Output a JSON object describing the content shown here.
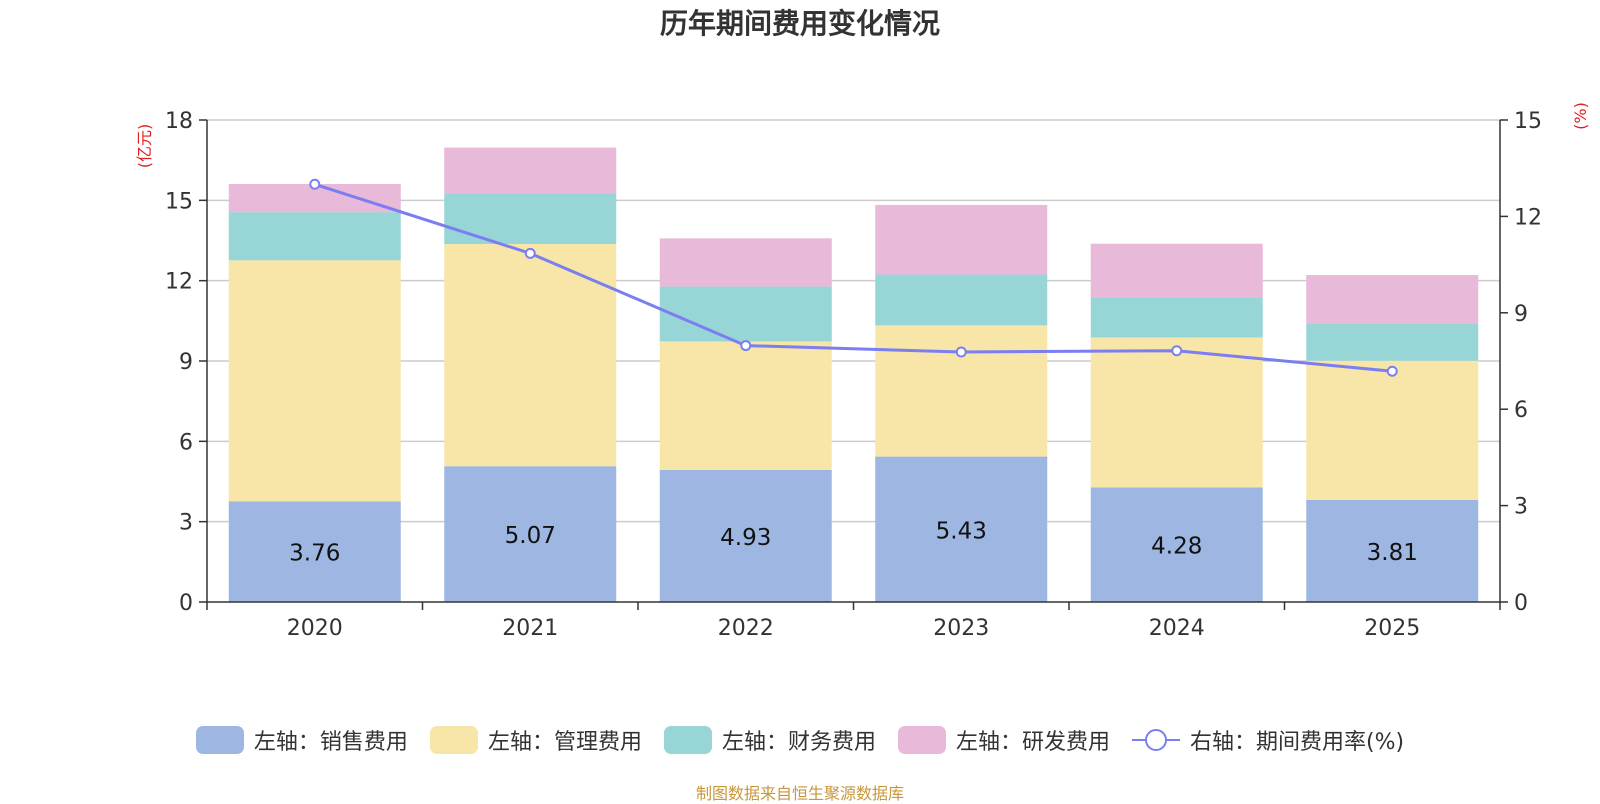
{
  "chart_data": {
    "type": "bar",
    "title": "历年期间费用变化情况",
    "categories": [
      "2020",
      "2021",
      "2022",
      "2023",
      "2024",
      "2025"
    ],
    "left_axis": {
      "unit_label": "(亿元)",
      "ylim": [
        0,
        18
      ],
      "ticks": [
        "0",
        "3",
        "6",
        "9",
        "12",
        "15",
        "18"
      ]
    },
    "right_axis": {
      "unit_label": "(%)",
      "ylim": [
        0,
        15
      ],
      "ticks": [
        "0",
        "3",
        "6",
        "9",
        "12",
        "15"
      ]
    },
    "series": [
      {
        "name": "左轴：销售费用",
        "axis": "left",
        "kind": "stacked-bar",
        "color": "#9db7e2",
        "values": [
          3.76,
          5.07,
          4.93,
          5.43,
          4.28,
          3.81
        ],
        "labels": [
          "3.76",
          "5.07",
          "4.93",
          "5.43",
          "4.28",
          "3.81"
        ]
      },
      {
        "name": "左轴：管理费用",
        "axis": "left",
        "kind": "stacked-bar",
        "color": "#f7e6a8",
        "values": [
          9.0,
          8.3,
          4.8,
          4.9,
          5.6,
          5.2
        ]
      },
      {
        "name": "左轴：财务费用",
        "axis": "left",
        "kind": "stacked-bar",
        "color": "#98d5d6",
        "values": [
          1.8,
          1.9,
          2.05,
          1.9,
          1.5,
          1.4
        ]
      },
      {
        "name": "左轴：研发费用",
        "axis": "left",
        "kind": "stacked-bar",
        "color": "#e8b9d9",
        "values": [
          1.05,
          1.7,
          1.8,
          2.6,
          2.0,
          1.8
        ]
      },
      {
        "name": "右轴：期间费用率(%)",
        "axis": "right",
        "kind": "line",
        "color": "#7b7ef0",
        "values": [
          13.0,
          10.85,
          7.98,
          7.78,
          7.82,
          7.18
        ]
      }
    ],
    "grid": true,
    "legend_position": "bottom"
  },
  "source_note": "制图数据来自恒生聚源数据库"
}
